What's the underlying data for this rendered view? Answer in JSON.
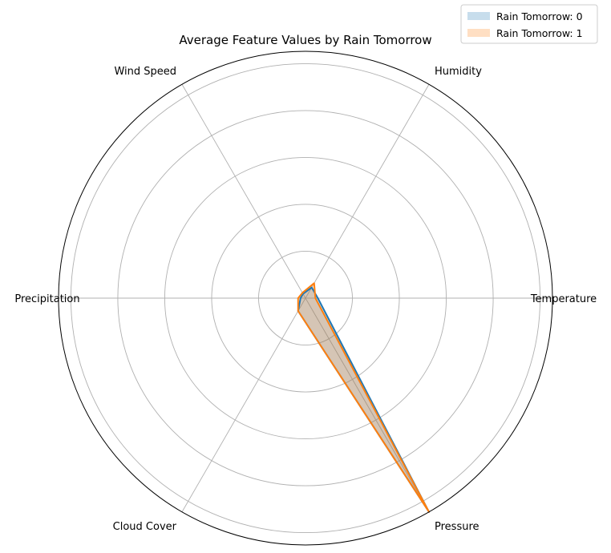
{
  "chart_data": {
    "type": "radar",
    "title": "Average Feature Values by Rain Tomorrow",
    "categories": [
      "Temperature",
      "Humidity",
      "Wind Speed",
      "Precipitation",
      "Cloud Cover",
      "Pressure"
    ],
    "rlim": [
      0,
      1
    ],
    "grid": true,
    "legend_position": "top-right",
    "series": [
      {
        "name": "Rain Tomorrow: 0",
        "color": "#1f77b4",
        "values": [
          0.05,
          0.05,
          0.02,
          0.02,
          0.06,
          1.0
        ]
      },
      {
        "name": "Rain Tomorrow: 1",
        "color": "#ff7f0e",
        "values": [
          0.04,
          0.07,
          0.025,
          0.03,
          0.06,
          1.0
        ]
      }
    ]
  }
}
